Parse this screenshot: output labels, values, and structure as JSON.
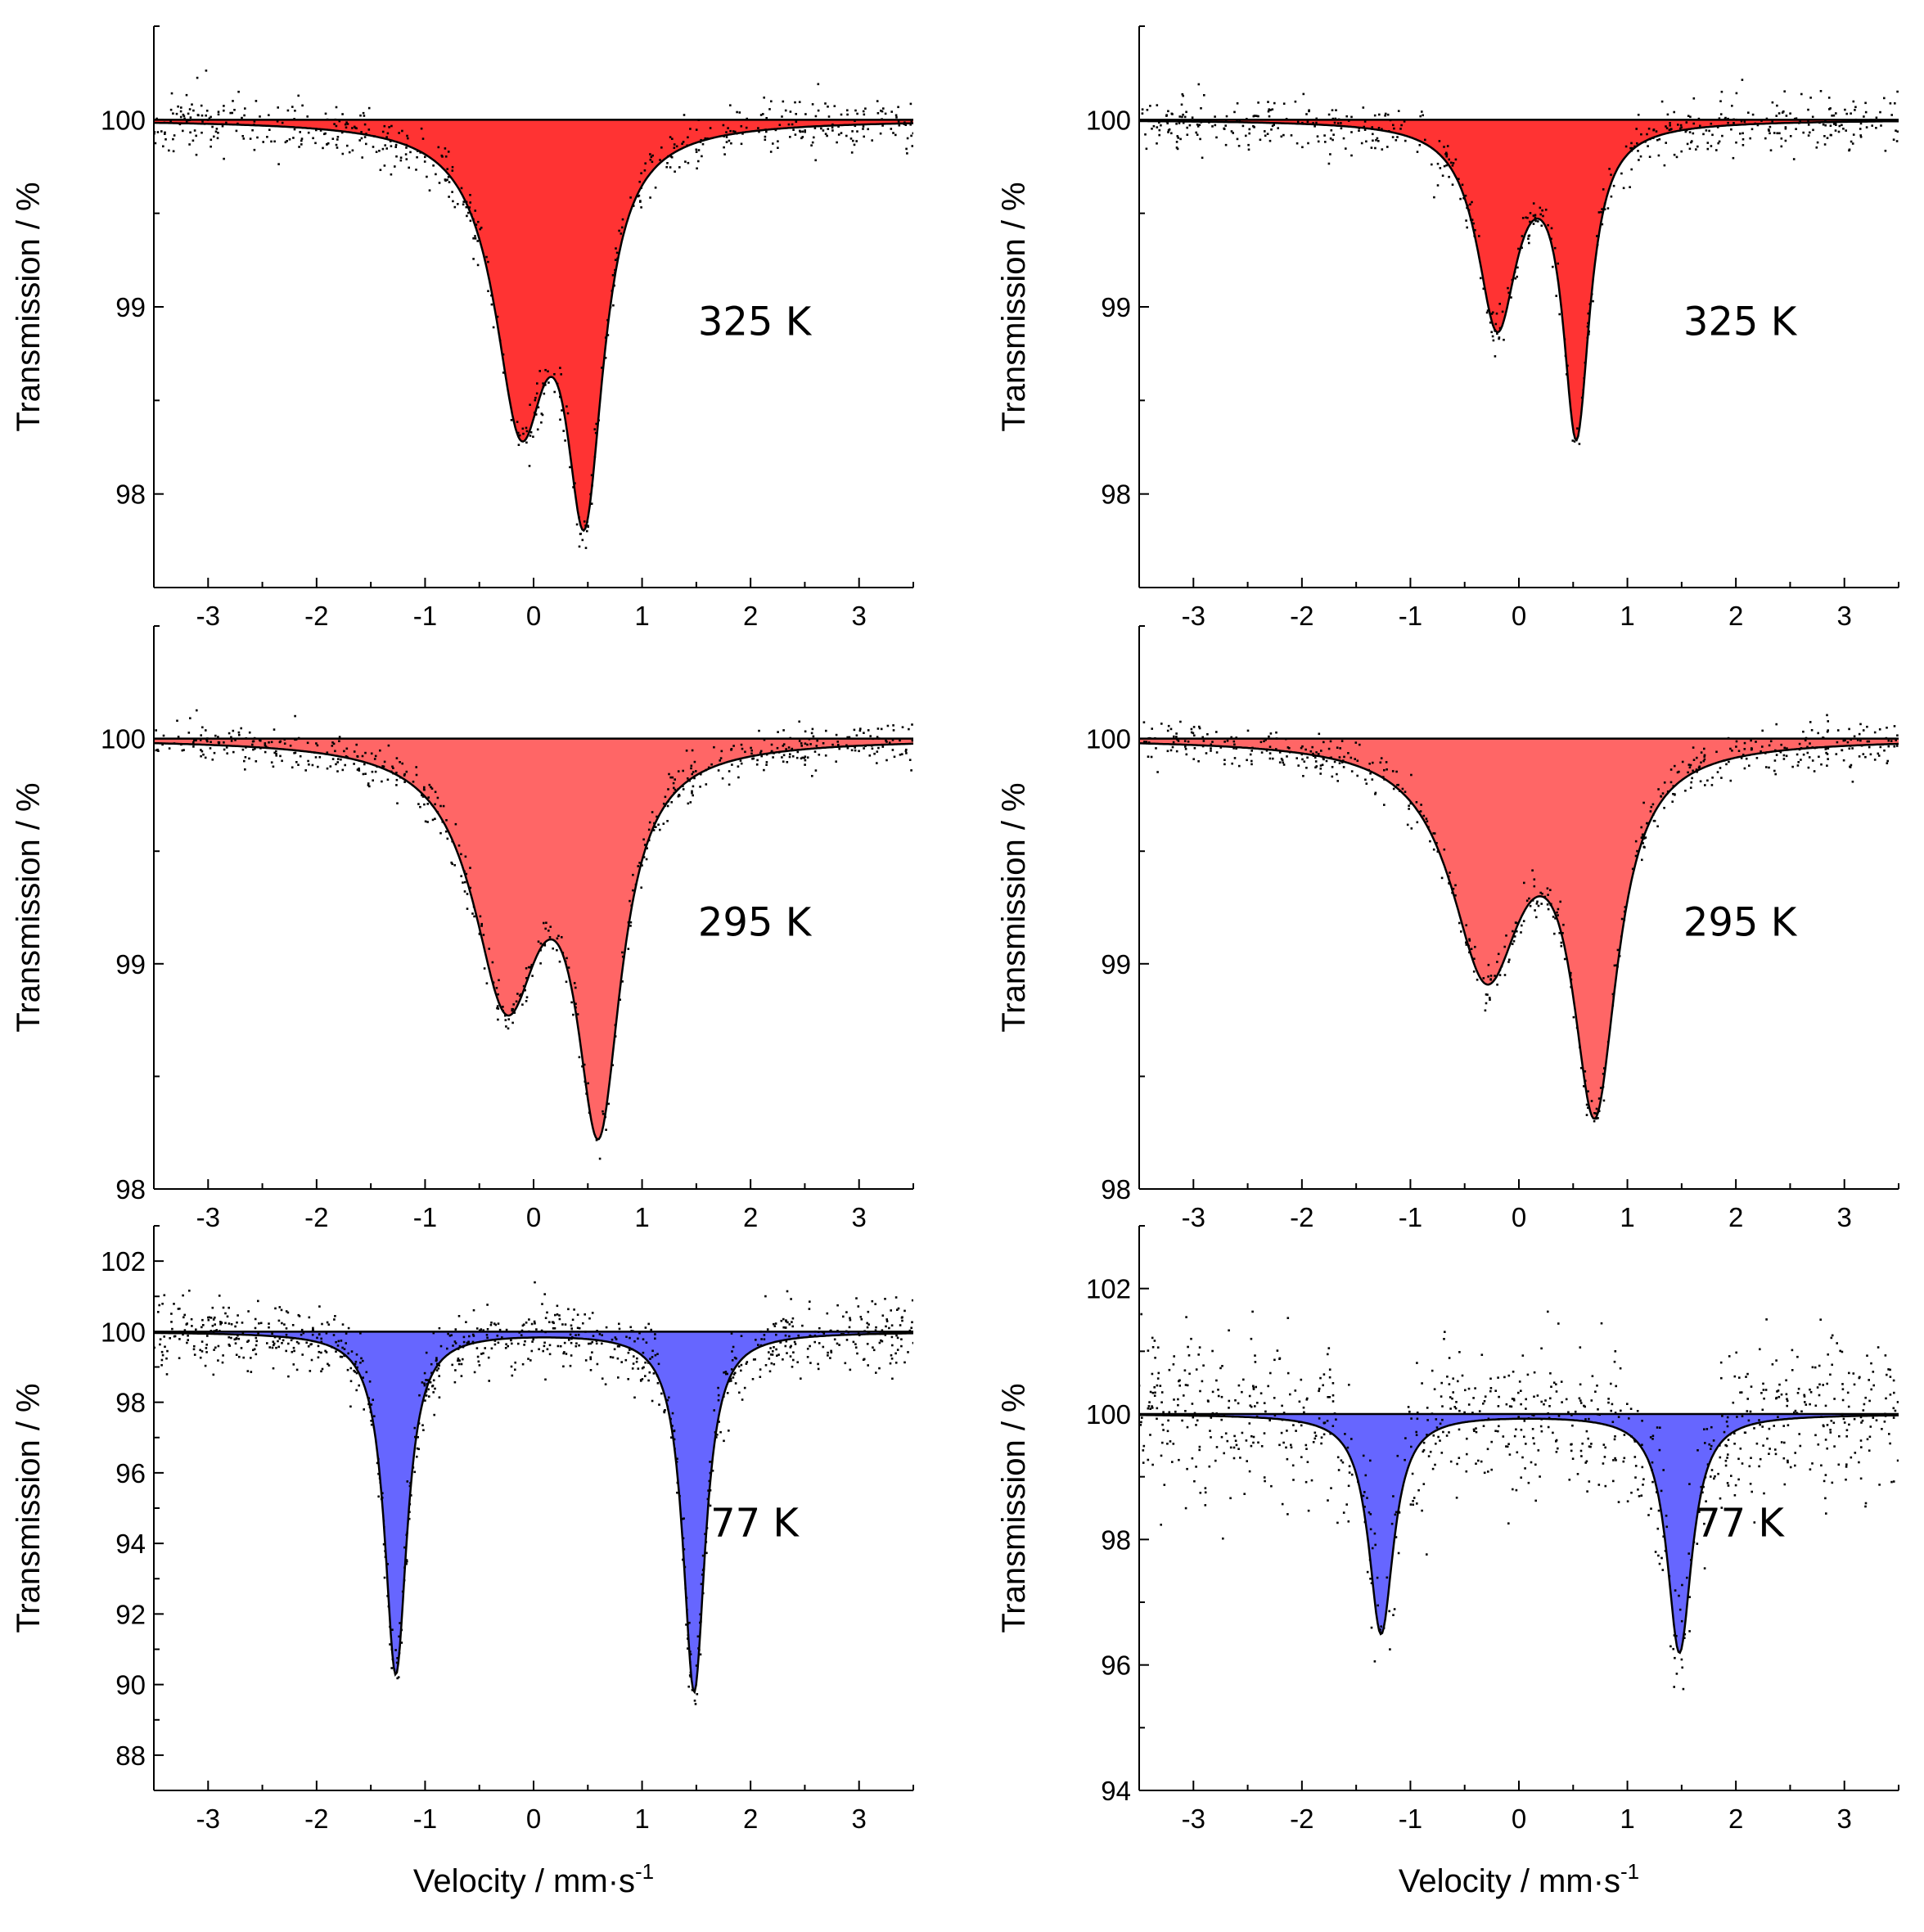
{
  "figure": {
    "xlabel": "Velocity / mm·s",
    "xlabel_exponent": "-1"
  },
  "chart_data": [
    {
      "type": "line",
      "panel": "row1-left",
      "annotation": "325 K",
      "ylabel": "Transmission / %",
      "fill_color": "#ff3333",
      "xlim": [
        -3.5,
        3.5
      ],
      "ylim": [
        97.5,
        100.5
      ],
      "x_ticks": [
        -3,
        -2,
        -1,
        0,
        1,
        2,
        3
      ],
      "y_ticks": [
        98,
        99,
        100
      ],
      "baseline": 100,
      "doublet": {
        "lines": [
          {
            "center": -0.12,
            "depth": 1.5,
            "width": 0.58
          },
          {
            "center": 0.47,
            "depth": 1.9,
            "width": 0.42
          }
        ]
      },
      "noise_sigma": 0.08,
      "n_points": 560,
      "seed": 11
    },
    {
      "type": "line",
      "panel": "row1-right",
      "annotation": "325 K",
      "ylabel": "Transmission / %",
      "fill_color": "#ff3333",
      "xlim": [
        -3.5,
        3.5
      ],
      "ylim": [
        97.5,
        100.5
      ],
      "x_ticks": [
        -3,
        -2,
        -1,
        0,
        1,
        2,
        3
      ],
      "y_ticks": [
        98,
        99,
        100
      ],
      "baseline": 100,
      "doublet": {
        "lines": [
          {
            "center": -0.2,
            "depth": 1.07,
            "width": 0.45
          },
          {
            "center": 0.53,
            "depth": 1.62,
            "width": 0.3
          }
        ]
      },
      "noise_sigma": 0.07,
      "n_points": 560,
      "seed": 23
    },
    {
      "type": "line",
      "panel": "row2-left",
      "annotation": "295 K",
      "ylabel": "Transmission / %",
      "fill_color": "#ff6666",
      "xlim": [
        -3.5,
        3.5
      ],
      "ylim": [
        98,
        100.5
      ],
      "x_ticks": [
        -3,
        -2,
        -1,
        0,
        1,
        2,
        3
      ],
      "y_ticks": [
        98,
        99,
        100
      ],
      "baseline": 100,
      "doublet": {
        "lines": [
          {
            "center": -0.25,
            "depth": 1.1,
            "width": 0.75
          },
          {
            "center": 0.6,
            "depth": 1.6,
            "width": 0.5
          }
        ]
      },
      "noise_sigma": 0.05,
      "n_points": 560,
      "seed": 37
    },
    {
      "type": "line",
      "panel": "row2-right",
      "annotation": "295 K",
      "ylabel": "Transmission / %",
      "fill_color": "#ff6666",
      "xlim": [
        -3.5,
        3.5
      ],
      "ylim": [
        98,
        100.5
      ],
      "x_ticks": [
        -3,
        -2,
        -1,
        0,
        1,
        2,
        3
      ],
      "y_ticks": [
        98,
        99,
        100
      ],
      "baseline": 100,
      "doublet": {
        "lines": [
          {
            "center": -0.3,
            "depth": 1.0,
            "width": 0.8
          },
          {
            "center": 0.7,
            "depth": 1.55,
            "width": 0.5
          }
        ]
      },
      "noise_sigma": 0.05,
      "n_points": 560,
      "seed": 41
    },
    {
      "type": "line",
      "panel": "row3-left",
      "annotation": "77 K",
      "ylabel": "Transmission / %",
      "fill_color": "#6666ff",
      "xlim": [
        -3.5,
        3.5
      ],
      "ylim": [
        87,
        103
      ],
      "x_ticks": [
        -3,
        -2,
        -1,
        0,
        1,
        2,
        3
      ],
      "y_ticks": [
        88,
        90,
        92,
        94,
        96,
        98,
        100,
        102
      ],
      "baseline": 100,
      "doublet": {
        "lines": [
          {
            "center": -1.27,
            "depth": 9.7,
            "width": 0.25
          },
          {
            "center": 1.48,
            "depth": 10.2,
            "width": 0.25
          }
        ]
      },
      "noise_sigma": 0.5,
      "n_points": 900,
      "seed": 53
    },
    {
      "type": "line",
      "panel": "row3-right",
      "annotation": "77 K",
      "ylabel": "Transmission / %",
      "fill_color": "#6666ff",
      "xlim": [
        -3.5,
        3.5
      ],
      "ylim": [
        94,
        103
      ],
      "x_ticks": [
        -3,
        -2,
        -1,
        0,
        1,
        2,
        3
      ],
      "y_ticks": [
        94,
        96,
        98,
        100,
        102
      ],
      "baseline": 100,
      "doublet": {
        "lines": [
          {
            "center": -1.27,
            "depth": 3.5,
            "width": 0.28
          },
          {
            "center": 1.48,
            "depth": 3.8,
            "width": 0.28
          }
        ]
      },
      "noise_sigma": 0.6,
      "n_points": 900,
      "seed": 67
    }
  ]
}
